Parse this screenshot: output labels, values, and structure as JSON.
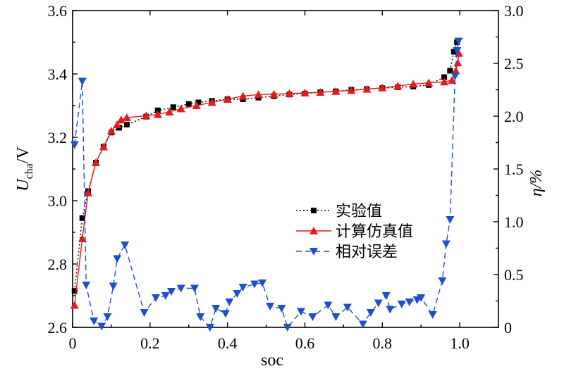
{
  "chart_data": {
    "type": "line",
    "xlabel": "soc",
    "ylabel_left": {
      "main": "U",
      "sub": "cha",
      "unit": "/V"
    },
    "ylabel_right": "η/%",
    "xlim": [
      0,
      1.1
    ],
    "ylim_left": [
      2.6,
      3.6
    ],
    "ylim_right": [
      0,
      3.0
    ],
    "xticks": [
      0,
      0.2,
      0.4,
      0.6,
      0.8,
      1.0
    ],
    "xtick_labels": [
      "0",
      "0.2",
      "0.4",
      "0.6",
      "0.8",
      "1.0"
    ],
    "yticks_left": [
      2.6,
      2.8,
      3.0,
      3.2,
      3.4,
      3.6
    ],
    "ytick_labels_left": [
      "2.6",
      "2.8",
      "3.0",
      "3.2",
      "3.4",
      "3.6"
    ],
    "yticks_right": [
      0,
      0.5,
      1.0,
      1.5,
      2.0,
      2.5,
      3.0
    ],
    "ytick_labels_right": [
      "0",
      "0.5",
      "1.0",
      "1.5",
      "2.0",
      "2.5",
      "3.0"
    ],
    "grid": false,
    "legend_position": "center-right",
    "series": [
      {
        "name": "实验值",
        "axis": "left",
        "color": "#000000",
        "line_style": "dotted",
        "marker": "square",
        "points": [
          [
            0.005,
            2.715
          ],
          [
            0.025,
            2.945
          ],
          [
            0.04,
            3.03
          ],
          [
            0.06,
            3.12
          ],
          [
            0.08,
            3.17
          ],
          [
            0.1,
            3.215
          ],
          [
            0.12,
            3.23
          ],
          [
            0.14,
            3.24
          ],
          [
            0.19,
            3.265
          ],
          [
            0.22,
            3.285
          ],
          [
            0.26,
            3.295
          ],
          [
            0.3,
            3.305
          ],
          [
            0.325,
            3.31
          ],
          [
            0.36,
            3.315
          ],
          [
            0.4,
            3.32
          ],
          [
            0.44,
            3.32
          ],
          [
            0.48,
            3.325
          ],
          [
            0.52,
            3.33
          ],
          [
            0.56,
            3.335
          ],
          [
            0.6,
            3.338
          ],
          [
            0.64,
            3.342
          ],
          [
            0.68,
            3.345
          ],
          [
            0.72,
            3.35
          ],
          [
            0.76,
            3.352
          ],
          [
            0.8,
            3.355
          ],
          [
            0.84,
            3.358
          ],
          [
            0.88,
            3.36
          ],
          [
            0.92,
            3.365
          ],
          [
            0.96,
            3.39
          ],
          [
            0.975,
            3.41
          ],
          [
            0.985,
            3.47
          ],
          [
            0.993,
            3.5
          ]
        ]
      },
      {
        "name": "计算仿真值",
        "axis": "left",
        "color": "#e8191c",
        "line_style": "solid",
        "marker": "triangle-up",
        "points": [
          [
            0.005,
            2.67
          ],
          [
            0.025,
            2.88
          ],
          [
            0.04,
            3.025
          ],
          [
            0.06,
            3.12
          ],
          [
            0.08,
            3.17
          ],
          [
            0.1,
            3.22
          ],
          [
            0.115,
            3.24
          ],
          [
            0.125,
            3.255
          ],
          [
            0.14,
            3.262
          ],
          [
            0.19,
            3.268
          ],
          [
            0.22,
            3.272
          ],
          [
            0.25,
            3.28
          ],
          [
            0.28,
            3.29
          ],
          [
            0.32,
            3.3
          ],
          [
            0.36,
            3.31
          ],
          [
            0.4,
            3.32
          ],
          [
            0.44,
            3.33
          ],
          [
            0.48,
            3.335
          ],
          [
            0.52,
            3.336
          ],
          [
            0.56,
            3.338
          ],
          [
            0.6,
            3.34
          ],
          [
            0.64,
            3.342
          ],
          [
            0.68,
            3.345
          ],
          [
            0.72,
            3.348
          ],
          [
            0.76,
            3.352
          ],
          [
            0.8,
            3.356
          ],
          [
            0.84,
            3.362
          ],
          [
            0.88,
            3.368
          ],
          [
            0.92,
            3.372
          ],
          [
            0.96,
            3.375
          ],
          [
            0.98,
            3.38
          ],
          [
            0.99,
            3.41
          ],
          [
            0.995,
            3.435
          ],
          [
            0.998,
            3.465
          ]
        ]
      },
      {
        "name": "相对误差",
        "axis": "right",
        "color": "#1f4fc9",
        "line_style": "dashed",
        "marker": "triangle-down",
        "points": [
          [
            0.005,
            1.73
          ],
          [
            0.025,
            2.33
          ],
          [
            0.035,
            0.4
          ],
          [
            0.055,
            0.06
          ],
          [
            0.075,
            0.01
          ],
          [
            0.09,
            0.1
          ],
          [
            0.105,
            0.39
          ],
          [
            0.115,
            0.65
          ],
          [
            0.135,
            0.78
          ],
          [
            0.185,
            0.14
          ],
          [
            0.215,
            0.28
          ],
          [
            0.24,
            0.3
          ],
          [
            0.255,
            0.34
          ],
          [
            0.28,
            0.37
          ],
          [
            0.315,
            0.37
          ],
          [
            0.33,
            0.1
          ],
          [
            0.355,
            0.0
          ],
          [
            0.37,
            0.18
          ],
          [
            0.395,
            0.13
          ],
          [
            0.405,
            0.24
          ],
          [
            0.425,
            0.32
          ],
          [
            0.44,
            0.38
          ],
          [
            0.47,
            0.41
          ],
          [
            0.49,
            0.42
          ],
          [
            0.51,
            0.2
          ],
          [
            0.54,
            0.18
          ],
          [
            0.555,
            0.0
          ],
          [
            0.59,
            0.15
          ],
          [
            0.62,
            0.1
          ],
          [
            0.66,
            0.21
          ],
          [
            0.68,
            0.1
          ],
          [
            0.71,
            0.19
          ],
          [
            0.75,
            0.03
          ],
          [
            0.77,
            0.14
          ],
          [
            0.79,
            0.23
          ],
          [
            0.81,
            0.3
          ],
          [
            0.82,
            0.17
          ],
          [
            0.85,
            0.22
          ],
          [
            0.87,
            0.24
          ],
          [
            0.89,
            0.26
          ],
          [
            0.9,
            0.28
          ],
          [
            0.93,
            0.12
          ],
          [
            0.955,
            0.44
          ],
          [
            0.965,
            0.79
          ],
          [
            0.975,
            1.02
          ],
          [
            0.988,
            2.38
          ],
          [
            0.993,
            2.62
          ],
          [
            0.997,
            2.71
          ]
        ]
      }
    ]
  }
}
